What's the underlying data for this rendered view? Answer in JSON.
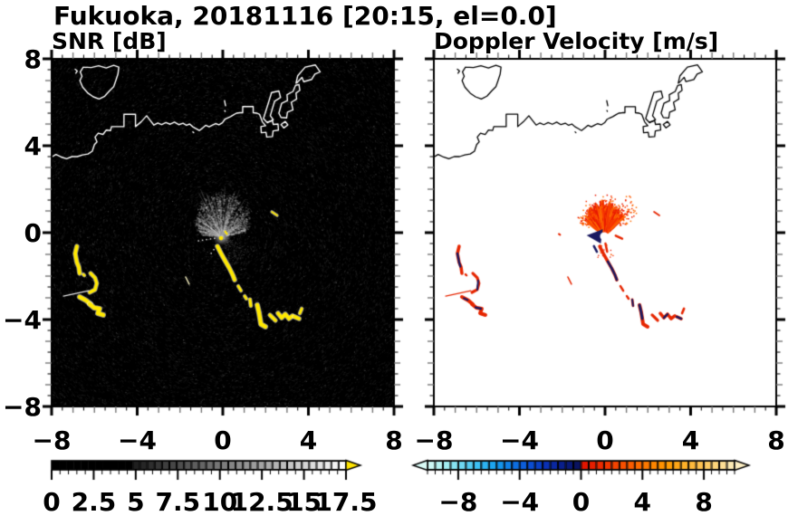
{
  "title": "Fukuoka, 20181116 [20:15, el=0.0]",
  "panels": {
    "left": {
      "label": "SNR [dB]"
    },
    "right": {
      "label": "Doppler Velocity [m/s]"
    }
  },
  "axis": {
    "range": [
      -8,
      8
    ],
    "major_tick_values": [
      -8,
      -4,
      0,
      4,
      8
    ],
    "major_tick_labels": [
      "−8",
      "−4",
      "0",
      "4",
      "8"
    ],
    "minor_step": 0.5
  },
  "colorbar_snr": {
    "min": 0,
    "max": 17.5,
    "cells": 40,
    "black_below": 5,
    "tick_label_values": [
      0,
      2.5,
      5,
      7.5,
      10,
      12.5,
      15,
      17.5
    ],
    "tick_labels": [
      "0",
      "2.5",
      "5",
      "7.5",
      "10",
      "12.5",
      "15",
      "17.5"
    ],
    "over_arrow_color": "#ffe400"
  },
  "colorbar_vel": {
    "min": -10,
    "max": 10,
    "cells": 40,
    "tick_label_values": [
      -8,
      -4,
      0,
      4,
      8
    ],
    "tick_labels": [
      "−8",
      "−4",
      "0",
      "4",
      "8"
    ],
    "neg_stops": [
      "#d9fbf6",
      "#a8eff0",
      "#6fd9f2",
      "#38bdf2",
      "#17a0ee",
      "#0d74e2",
      "#0b4fd4",
      "#0a30b4",
      "#091d85",
      "#0a1156"
    ],
    "pos_stops": [
      "#e01000",
      "#e92600",
      "#f54200",
      "#fa5e00",
      "#fd7e00",
      "#fe9800",
      "#feae25",
      "#fec351",
      "#fdd780",
      "#fceec2"
    ]
  },
  "colors": {
    "snr_echo": "#ffe800",
    "vel_pos": "#e62600",
    "vel_neg": "#191960",
    "coast_left": "#ffffff",
    "coast_right": "#000000"
  },
  "chart_data": {
    "type": "radar_ppi_pair",
    "site": "Fukuoka",
    "date": "20181116",
    "time": "20:15",
    "elevation": 0.0,
    "x_range": [
      -8,
      8
    ],
    "y_range": [
      -8,
      8
    ],
    "radar_center": [
      -0.04,
      -0.17
    ],
    "fan": {
      "sector_deg_from_north": [
        -85,
        80
      ],
      "r_max_data": 1.9
    },
    "coastline": [
      [
        [
          -8.05,
          3.45
        ],
        [
          -7.8,
          3.6
        ],
        [
          -7.55,
          3.48
        ],
        [
          -7.3,
          3.4
        ],
        [
          -7.05,
          3.5
        ],
        [
          -6.8,
          3.5
        ],
        [
          -6.55,
          3.58
        ],
        [
          -6.3,
          3.62
        ],
        [
          -6.1,
          3.75
        ],
        [
          -6.0,
          4.05
        ],
        [
          -5.88,
          4.18
        ],
        [
          -5.97,
          4.4
        ],
        [
          -5.82,
          4.58
        ],
        [
          -5.6,
          4.52
        ],
        [
          -5.45,
          4.72
        ],
        [
          -5.25,
          4.7
        ],
        [
          -5.2,
          4.88
        ],
        [
          -4.62,
          4.88
        ],
        [
          -4.62,
          5.45
        ],
        [
          -4.08,
          5.45
        ],
        [
          -4.08,
          4.88
        ],
        [
          -3.82,
          5.1
        ],
        [
          -3.56,
          5.38
        ],
        [
          -3.38,
          5.15
        ],
        [
          -3.22,
          4.95
        ],
        [
          -3.04,
          5.05
        ],
        [
          -2.86,
          4.97
        ],
        [
          -2.66,
          5.07
        ],
        [
          -2.46,
          4.99
        ],
        [
          -2.26,
          5.09
        ],
        [
          -2.06,
          4.97
        ],
        [
          -1.86,
          5.04
        ],
        [
          -1.7,
          4.94
        ],
        [
          -1.55,
          5.0
        ],
        [
          -1.4,
          4.87
        ],
        [
          -1.25,
          4.79
        ],
        [
          -1.1,
          4.7
        ],
        [
          -0.94,
          4.82
        ],
        [
          -0.8,
          4.94
        ],
        [
          -0.64,
          4.87
        ],
        [
          -0.48,
          4.95
        ],
        [
          -0.34,
          5.02
        ],
        [
          -0.18,
          4.96
        ],
        [
          -0.02,
          5.06
        ],
        [
          0.1,
          5.22
        ],
        [
          0.22,
          5.28
        ],
        [
          0.36,
          5.34
        ],
        [
          0.5,
          5.42
        ],
        [
          0.64,
          5.5
        ],
        [
          0.8,
          5.52
        ],
        [
          0.93,
          5.52
        ],
        [
          0.93,
          5.8
        ],
        [
          1.42,
          5.8
        ],
        [
          1.42,
          5.52
        ],
        [
          1.6,
          5.5
        ],
        [
          1.72,
          5.44
        ],
        [
          1.85,
          5.1
        ],
        [
          2.0,
          4.92
        ],
        [
          1.78,
          4.88
        ],
        [
          1.8,
          4.6
        ],
        [
          2.02,
          4.62
        ],
        [
          2.05,
          4.4
        ],
        [
          2.32,
          4.42
        ],
        [
          2.35,
          4.68
        ],
        [
          2.6,
          4.72
        ],
        [
          2.58,
          5.0
        ],
        [
          2.36,
          4.98
        ],
        [
          2.32,
          5.15
        ],
        [
          2.1,
          5.1
        ]
      ],
      [
        [
          -6.52,
          7.62
        ],
        [
          -6.66,
          7.4
        ],
        [
          -6.58,
          7.2
        ],
        [
          -6.68,
          7.0
        ],
        [
          -6.55,
          6.7
        ],
        [
          -6.3,
          6.42
        ],
        [
          -6.05,
          6.25
        ],
        [
          -5.78,
          6.15
        ],
        [
          -5.52,
          6.28
        ],
        [
          -5.3,
          6.52
        ],
        [
          -5.1,
          6.72
        ],
        [
          -5.0,
          7.0
        ],
        [
          -4.9,
          7.3
        ],
        [
          -4.86,
          7.62
        ],
        [
          -5.1,
          7.7
        ],
        [
          -5.45,
          7.58
        ],
        [
          -5.8,
          7.68
        ],
        [
          -6.15,
          7.6
        ],
        [
          -6.52,
          7.62
        ]
      ],
      [
        [
          -6.9,
          7.52
        ],
        [
          -6.8,
          7.44
        ],
        [
          -6.87,
          7.34
        ]
      ],
      [
        [
          1.9,
          5.25
        ],
        [
          2.28,
          6.45
        ],
        [
          2.62,
          6.52
        ],
        [
          2.7,
          6.22
        ],
        [
          2.42,
          6.05
        ],
        [
          2.22,
          5.38
        ],
        [
          2.36,
          5.2
        ],
        [
          2.08,
          5.06
        ],
        [
          1.9,
          5.25
        ]
      ],
      [
        [
          2.62,
          5.5
        ],
        [
          2.75,
          5.95
        ],
        [
          3.02,
          6.08
        ],
        [
          3.0,
          6.35
        ],
        [
          3.28,
          6.5
        ],
        [
          3.4,
          6.78
        ],
        [
          3.56,
          6.82
        ],
        [
          3.6,
          6.55
        ],
        [
          3.42,
          6.42
        ],
        [
          3.45,
          6.15
        ],
        [
          3.2,
          6.0
        ],
        [
          3.28,
          5.65
        ],
        [
          3.02,
          5.55
        ],
        [
          2.98,
          5.28
        ],
        [
          2.72,
          5.3
        ],
        [
          2.62,
          5.5
        ]
      ],
      [
        [
          3.42,
          6.88
        ],
        [
          3.5,
          7.22
        ],
        [
          3.85,
          7.62
        ],
        [
          4.32,
          7.72
        ],
        [
          4.55,
          7.4
        ],
        [
          4.3,
          7.3
        ],
        [
          4.15,
          7.05
        ],
        [
          3.78,
          6.95
        ],
        [
          3.7,
          7.15
        ],
        [
          3.46,
          6.9
        ]
      ],
      [
        [
          2.72,
          4.98
        ],
        [
          2.92,
          5.12
        ],
        [
          3.04,
          4.96
        ],
        [
          2.85,
          4.82
        ],
        [
          2.72,
          4.98
        ]
      ],
      [
        [
          0.08,
          6.08
        ],
        [
          0.13,
          5.84
        ]
      ],
      [
        [
          0.09,
          5.62
        ],
        [
          0.11,
          5.58
        ]
      ],
      [
        [
          -1.4,
          4.64
        ],
        [
          -1.36,
          4.6
        ]
      ]
    ],
    "echoes": [
      {
        "id": "A1",
        "pts": [
          [
            -6.82,
            -0.63
          ],
          [
            -6.9,
            -0.96
          ],
          [
            -6.82,
            -1.37
          ],
          [
            -6.73,
            -1.58
          ],
          [
            -6.69,
            -1.87
          ]
        ],
        "w": 4
      },
      {
        "id": "A1b",
        "pts": [
          [
            -6.52,
            -1.92
          ],
          [
            -6.47,
            -1.97
          ]
        ],
        "w": 2.6
      },
      {
        "id": "A2",
        "pts": [
          [
            -6.18,
            -1.87
          ],
          [
            -5.97,
            -2.08
          ],
          [
            -5.89,
            -2.33
          ],
          [
            -5.97,
            -2.62
          ],
          [
            -6.22,
            -2.75
          ]
        ],
        "w": 3.5
      },
      {
        "id": "A3",
        "pts": [
          [
            -6.69,
            -2.96
          ],
          [
            -6.39,
            -3.12
          ],
          [
            -6.18,
            -3.29
          ]
        ],
        "w": 4.5
      },
      {
        "id": "A4",
        "pts": [
          [
            -6.22,
            -3.29
          ],
          [
            -6.01,
            -3.46
          ],
          [
            -5.76,
            -3.5
          ],
          [
            -5.84,
            -3.71
          ],
          [
            -5.59,
            -3.79
          ]
        ],
        "w": 4.5
      },
      {
        "id": "B1",
        "pts": [
          [
            -0.25,
            -0.63
          ],
          [
            -0.08,
            -0.96
          ],
          [
            0.13,
            -1.33
          ],
          [
            0.3,
            -1.62
          ],
          [
            0.47,
            -1.96
          ],
          [
            0.55,
            -2.17
          ]
        ],
        "w": 4
      },
      {
        "id": "B2a",
        "pts": [
          [
            0.72,
            -2.46
          ],
          [
            0.85,
            -2.67
          ]
        ],
        "w": 2.8
      },
      {
        "id": "B2b",
        "pts": [
          [
            1.02,
            -2.92
          ],
          [
            1.1,
            -3.04
          ]
        ],
        "w": 2.8
      },
      {
        "id": "B3",
        "pts": [
          [
            1.27,
            -3.08
          ],
          [
            1.31,
            -3.37
          ]
        ],
        "w": 3.2
      },
      {
        "id": "B4",
        "pts": [
          [
            1.61,
            -3.33
          ],
          [
            1.69,
            -3.67
          ],
          [
            1.74,
            -3.96
          ],
          [
            1.78,
            -4.21
          ],
          [
            1.99,
            -4.33
          ]
        ],
        "w": 4.5
      },
      {
        "id": "B5",
        "pts": [
          [
            2.2,
            -3.79
          ],
          [
            2.46,
            -4.04
          ]
        ],
        "w": 3.6
      },
      {
        "id": "B6",
        "pts": [
          [
            2.58,
            -3.71
          ],
          [
            2.75,
            -3.92
          ],
          [
            2.92,
            -3.75
          ],
          [
            3.09,
            -3.96
          ],
          [
            3.26,
            -3.83
          ]
        ],
        "w": 4
      },
      {
        "id": "B7",
        "pts": [
          [
            3.35,
            -3.87
          ],
          [
            3.56,
            -3.96
          ]
        ],
        "w": 4
      },
      {
        "id": "B7h",
        "pts": [
          [
            3.6,
            -3.71
          ],
          [
            3.69,
            -3.5
          ]
        ],
        "w": 3
      },
      {
        "id": "C",
        "pts": [
          [
            2.29,
            0.96
          ],
          [
            2.54,
            0.79
          ]
        ],
        "w": 2
      }
    ],
    "thin_line": {
      "pts": [
        [
          -7.45,
          -2.92
        ],
        [
          -6.27,
          -2.67
        ]
      ],
      "w": 1.2
    },
    "faint_dash": {
      "pts": [
        [
          -1.74,
          -2.04
        ],
        [
          -1.57,
          -2.37
        ]
      ],
      "w": 1.5
    },
    "navy_overlays": [
      {
        "pts": [
          [
            0.13,
            -1.33
          ],
          [
            0.3,
            -1.62
          ],
          [
            0.47,
            -1.96
          ],
          [
            0.55,
            -2.17
          ]
        ],
        "w": 2.6
      },
      {
        "pts": [
          [
            1.27,
            -3.08
          ],
          [
            1.31,
            -3.37
          ]
        ],
        "w": 2
      },
      {
        "pts": [
          [
            1.61,
            -3.33
          ],
          [
            1.69,
            -3.67
          ],
          [
            1.74,
            -3.96
          ]
        ],
        "w": 2.8
      },
      {
        "pts": [
          [
            2.75,
            -3.92
          ],
          [
            2.92,
            -3.75
          ]
        ],
        "w": 2.4
      },
      {
        "pts": [
          [
            3.35,
            -3.87
          ],
          [
            3.56,
            -3.96
          ]
        ],
        "w": 2.4
      },
      {
        "pts": [
          [
            -6.9,
            -0.96
          ],
          [
            -6.82,
            -1.37
          ],
          [
            -6.76,
            -1.56
          ]
        ],
        "w": 2.4
      },
      {
        "pts": [
          [
            -5.93,
            -2.2
          ],
          [
            -5.97,
            -2.62
          ]
        ],
        "w": 2
      },
      {
        "pts": [
          [
            -6.05,
            -3.44
          ],
          [
            -5.8,
            -3.5
          ]
        ],
        "w": 2.4
      },
      {
        "pts": [
          [
            -6.6,
            -3.02
          ],
          [
            -6.42,
            -3.1
          ]
        ],
        "w": 2
      }
    ],
    "navy_wedge": [
      [
        -0.86,
        -0.12
      ],
      [
        -0.1,
        0.16
      ],
      [
        -0.2,
        -0.5
      ]
    ],
    "navy_dash": {
      "pts": [
        [
          -0.52,
          -0.62
        ],
        [
          -0.38,
          -0.88
        ]
      ],
      "w": 2.5
    },
    "red_extras": [
      {
        "pts": [
          [
            0.5,
            -0.14
          ],
          [
            0.8,
            -0.28
          ]
        ],
        "w": 2.5
      },
      {
        "pts": [
          [
            -2.16,
            -0.06
          ],
          [
            -2.1,
            -0.1
          ]
        ],
        "w": 2
      },
      {
        "pts": [
          [
            0.02,
            -0.5
          ],
          [
            0.1,
            -0.88
          ]
        ],
        "w": 2.5
      }
    ]
  }
}
